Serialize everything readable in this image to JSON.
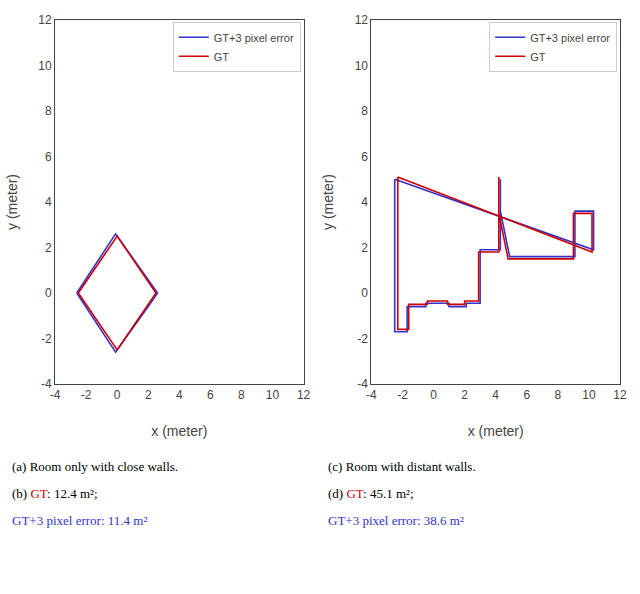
{
  "chart_data": [
    {
      "type": "line",
      "xlabel": "x (meter)",
      "ylabel": "y (meter)",
      "xlim": [
        -4,
        12
      ],
      "ylim": [
        -4,
        12
      ],
      "xticks": [
        -4,
        -2,
        0,
        2,
        4,
        6,
        8,
        10,
        12
      ],
      "yticks": [
        -4,
        -2,
        0,
        2,
        4,
        6,
        8,
        10,
        12
      ],
      "grid": false,
      "legend": "upper right",
      "series": [
        {
          "name": "GT+3 pixel error",
          "color": "#3333cc",
          "x": [
            -2.6,
            -0.1,
            2.6,
            2.1,
            -0.1,
            -2.6
          ],
          "values": [
            0.0,
            2.6,
            0.0,
            -0.5,
            -2.6,
            0.0
          ]
        },
        {
          "name": "GT",
          "color": "#cc0000",
          "x": [
            -2.5,
            0.0,
            2.5,
            0.0,
            -2.5
          ],
          "values": [
            0.0,
            2.5,
            0.0,
            -2.5,
            0.0
          ]
        }
      ],
      "annotations": [
        [
          {
            "text": "(a) Room only with close walls."
          }
        ],
        [
          {
            "text": "(b) "
          },
          {
            "text": "GT",
            "color": "#cc0000"
          },
          {
            "text": ": 12.4 m²;"
          }
        ],
        [
          {
            "text": "GT+3 pixel error: 11.4 m²",
            "color": "#3333cc"
          }
        ]
      ]
    },
    {
      "type": "line",
      "xlabel": "x (meter)",
      "ylabel": "y (meter)",
      "xlim": [
        -4,
        12
      ],
      "ylim": [
        -4,
        12
      ],
      "xticks": [
        -4,
        -2,
        0,
        2,
        4,
        6,
        8,
        10,
        12
      ],
      "yticks": [
        -4,
        -2,
        0,
        2,
        4,
        6,
        8,
        10,
        12
      ],
      "grid": false,
      "legend": "upper right",
      "series": [
        {
          "name": "GT+3 pixel error",
          "color": "#3333cc",
          "x": [
            -2.5,
            -2.5,
            -1.7,
            -1.7,
            -0.5,
            -0.5,
            1.0,
            1.0,
            2.1,
            2.1,
            3.0,
            3.0,
            4.3,
            4.3,
            4.3,
            4.9,
            9.1,
            9.1,
            10.3,
            10.3,
            -2.5
          ],
          "values": [
            5.0,
            -1.7,
            -1.7,
            -0.6,
            -0.6,
            -0.45,
            -0.45,
            -0.6,
            -0.6,
            -0.45,
            -0.45,
            1.9,
            1.9,
            5.0,
            3.6,
            1.6,
            1.6,
            3.6,
            3.6,
            1.9,
            5.0
          ]
        },
        {
          "name": "GT",
          "color": "#cc0000",
          "x": [
            -2.3,
            -2.3,
            -1.6,
            -1.6,
            -0.4,
            -0.4,
            0.9,
            0.9,
            2.0,
            2.0,
            2.9,
            2.9,
            4.2,
            4.2,
            4.2,
            4.8,
            9.0,
            9.0,
            10.2,
            10.2,
            -2.3
          ],
          "values": [
            5.1,
            -1.6,
            -1.6,
            -0.5,
            -0.5,
            -0.35,
            -0.35,
            -0.5,
            -0.5,
            -0.35,
            -0.35,
            1.8,
            1.8,
            5.1,
            3.5,
            1.5,
            1.5,
            3.5,
            3.5,
            1.8,
            5.1
          ]
        }
      ],
      "annotations": [
        [
          {
            "text": "(c) Room with distant walls."
          }
        ],
        [
          {
            "text": "(d) "
          },
          {
            "text": "GT",
            "color": "#cc0000"
          },
          {
            "text": ": 45.1 m²;"
          }
        ],
        [
          {
            "text": "GT+3 pixel error: 38.6 m²",
            "color": "#3333cc"
          }
        ]
      ]
    }
  ]
}
